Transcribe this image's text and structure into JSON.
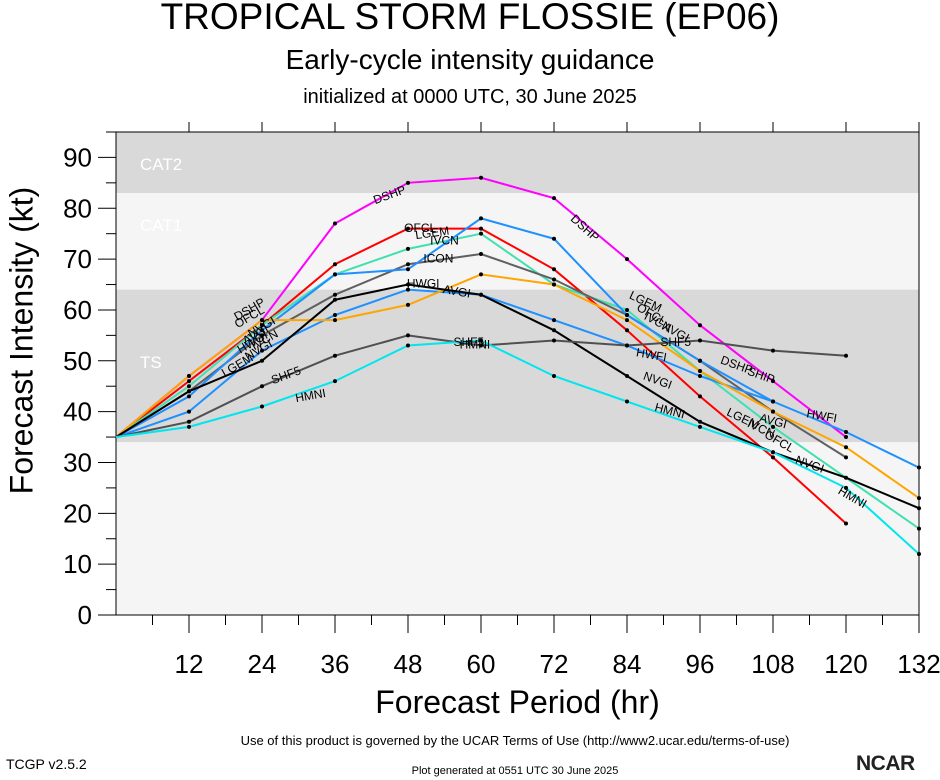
{
  "chart_data": {
    "type": "line",
    "title": "TROPICAL STORM FLOSSIE (EP06)",
    "subtitle": "Early-cycle intensity guidance",
    "initialized": "initialized at 0000 UTC, 30 June 2025",
    "xlabel": "Forecast Period (hr)",
    "ylabel": "Forecast Intensity (kt)",
    "xlim": [
      0,
      132
    ],
    "ylim": [
      0,
      95
    ],
    "xticks": [
      12,
      24,
      36,
      48,
      60,
      72,
      84,
      96,
      108,
      120,
      132
    ],
    "yticks": [
      0,
      10,
      20,
      30,
      40,
      50,
      60,
      70,
      80,
      90
    ],
    "bands": [
      {
        "label": "TS",
        "from": 34,
        "to": 64,
        "color": "#d9d9d9"
      },
      {
        "label": "CAT1",
        "from": 64,
        "to": 83,
        "color": "#f5f5f5"
      },
      {
        "label": "CAT2",
        "from": 83,
        "to": 95,
        "color": "#d9d9d9"
      }
    ],
    "series": [
      {
        "name": "DSHP",
        "color": "#ff00ff",
        "x": [
          0,
          12,
          24,
          36,
          48,
          60,
          72,
          84,
          96,
          108,
          120
        ],
        "y": [
          35,
          47,
          58,
          77,
          85,
          86,
          82,
          70,
          57,
          46,
          35
        ]
      },
      {
        "name": "OFCL",
        "color": "#ff0000",
        "x": [
          0,
          12,
          24,
          36,
          48,
          60,
          72,
          84,
          96,
          108,
          120
        ],
        "y": [
          35,
          46,
          57,
          69,
          76,
          76,
          68,
          56,
          43,
          31,
          18
        ]
      },
      {
        "name": "LGEM",
        "color": "#40e0b0",
        "x": [
          0,
          12,
          24,
          36,
          48,
          60,
          72,
          84,
          96,
          108,
          132
        ],
        "y": [
          35,
          45,
          57,
          67,
          72,
          75,
          65,
          60,
          48,
          37,
          17
        ]
      },
      {
        "name": "IVCN",
        "color": "#606060",
        "x": [
          0,
          12,
          24,
          36,
          48,
          60,
          72,
          84,
          96,
          108,
          120
        ],
        "y": [
          35,
          44,
          55,
          63,
          69,
          71,
          66,
          59,
          50,
          40,
          31
        ]
      },
      {
        "name": "HWFI",
        "color": "#1e90ff",
        "x": [
          0,
          12,
          24,
          36,
          48,
          60,
          72,
          84,
          96,
          108,
          120,
          132
        ],
        "y": [
          35,
          43,
          56,
          67,
          68,
          78,
          74,
          59,
          50,
          42,
          36,
          29
        ]
      },
      {
        "name": "HWGI",
        "color": "#1e90ff",
        "x": [
          0,
          12,
          24,
          36,
          48,
          60,
          72,
          84,
          96,
          108
        ],
        "y": [
          35,
          40,
          52,
          59,
          64,
          63,
          58,
          53,
          47,
          42
        ]
      },
      {
        "name": "AVGI",
        "color": "#ffa500",
        "x": [
          0,
          12,
          24,
          36,
          48,
          60,
          72,
          84,
          96,
          108,
          120,
          132
        ],
        "y": [
          35,
          47,
          58,
          58,
          61,
          67,
          65,
          58,
          48,
          40,
          33,
          23
        ]
      },
      {
        "name": "NVGI",
        "color": "#000000",
        "x": [
          0,
          12,
          24,
          36,
          48,
          60,
          72,
          84,
          96,
          108,
          120,
          132
        ],
        "y": [
          35,
          44,
          50,
          62,
          65,
          63,
          56,
          47,
          38,
          32,
          27,
          21
        ]
      },
      {
        "name": "SHF5",
        "color": "#505050",
        "x": [
          0,
          12,
          24,
          36,
          48,
          60,
          72,
          84,
          96,
          108,
          120
        ],
        "y": [
          35,
          38,
          45,
          51,
          55,
          53,
          54,
          53,
          54,
          52,
          51
        ]
      },
      {
        "name": "HMNI",
        "color": "#00e5ee",
        "x": [
          0,
          12,
          24,
          36,
          48,
          60,
          72,
          84,
          96,
          108,
          120,
          132
        ],
        "y": [
          35,
          37,
          41,
          46,
          53,
          54,
          47,
          42,
          37,
          32,
          25,
          12
        ]
      }
    ],
    "labels": [
      {
        "text": "DSHP",
        "x": 45,
        "y": 82.5,
        "rot": -20
      },
      {
        "text": "OFCL",
        "x": 50,
        "y": 76,
        "rot": 0
      },
      {
        "text": "LGEM",
        "x": 52,
        "y": 75,
        "rot": -8
      },
      {
        "text": "IVCN",
        "x": 54,
        "y": 73.5,
        "rot": 0
      },
      {
        "text": "ICON",
        "x": 53,
        "y": 70,
        "rot": 0
      },
      {
        "text": "HWGI",
        "x": 50.5,
        "y": 65,
        "rot": 0
      },
      {
        "text": "AVGI",
        "x": 56,
        "y": 63.5,
        "rot": 10
      },
      {
        "text": "DSHP",
        "x": 77,
        "y": 76,
        "rot": 42
      },
      {
        "text": "LGEM",
        "x": 87,
        "y": 61.5,
        "rot": 25
      },
      {
        "text": "OFCL",
        "x": 88,
        "y": 59,
        "rot": 30
      },
      {
        "text": "IVCN",
        "x": 89,
        "y": 57.5,
        "rot": 28
      },
      {
        "text": "AVGI",
        "x": 92,
        "y": 55.5,
        "rot": 28
      },
      {
        "text": "HWFI",
        "x": 88,
        "y": 51,
        "rot": 10
      },
      {
        "text": "SHF5",
        "x": 92,
        "y": 53.5,
        "rot": 0
      },
      {
        "text": "DSHP",
        "x": 102,
        "y": 49,
        "rot": 20
      },
      {
        "text": "SHIP",
        "x": 106,
        "y": 47,
        "rot": 20
      },
      {
        "text": "SHF5",
        "x": 58,
        "y": 53.5,
        "rot": 0
      },
      {
        "text": "HMNI",
        "x": 59,
        "y": 53,
        "rot": 0
      },
      {
        "text": "NVGI",
        "x": 89,
        "y": 46,
        "rot": 20
      },
      {
        "text": "HMNI",
        "x": 91,
        "y": 40,
        "rot": 15
      },
      {
        "text": "LGEM",
        "x": 103,
        "y": 38.5,
        "rot": 25
      },
      {
        "text": "IVCN",
        "x": 106,
        "y": 36.5,
        "rot": 25
      },
      {
        "text": "AVGI",
        "x": 108,
        "y": 38,
        "rot": 15
      },
      {
        "text": "HWFI",
        "x": 116,
        "y": 39,
        "rot": 10
      },
      {
        "text": "OFCL",
        "x": 109,
        "y": 34,
        "rot": 30
      },
      {
        "text": "NVGI",
        "x": 114,
        "y": 29.5,
        "rot": 20
      },
      {
        "text": "HMNI",
        "x": 121,
        "y": 23,
        "rot": 30
      },
      {
        "text": "LGEM",
        "x": 20,
        "y": 49,
        "rot": -30
      },
      {
        "text": "SHF5",
        "x": 28,
        "y": 47,
        "rot": -20
      },
      {
        "text": "HMNI",
        "x": 32,
        "y": 43,
        "rot": -10
      },
      {
        "text": "DSHP",
        "x": 22,
        "y": 60,
        "rot": -30
      },
      {
        "text": "OFCL",
        "x": 22,
        "y": 58.5,
        "rot": -30
      },
      {
        "text": "NVGI",
        "x": 24,
        "y": 56.5,
        "rot": -30
      },
      {
        "text": "AVGI",
        "x": 23,
        "y": 55,
        "rot": -30
      },
      {
        "text": "HWGI",
        "x": 22.5,
        "y": 53.5,
        "rot": -30
      },
      {
        "text": "NVGI",
        "x": 23.5,
        "y": 52,
        "rot": -30
      },
      {
        "text": "IVCN",
        "x": 24.5,
        "y": 54,
        "rot": -30
      }
    ]
  },
  "footer": {
    "terms": "Use of this product is governed by the UCAR Terms of Use (http://www2.ucar.edu/terms-of-use)",
    "generated": "Plot generated at 0551 UTC   30 June 2025",
    "version": "TCGP v2.5.2",
    "logo": "NCAR"
  }
}
